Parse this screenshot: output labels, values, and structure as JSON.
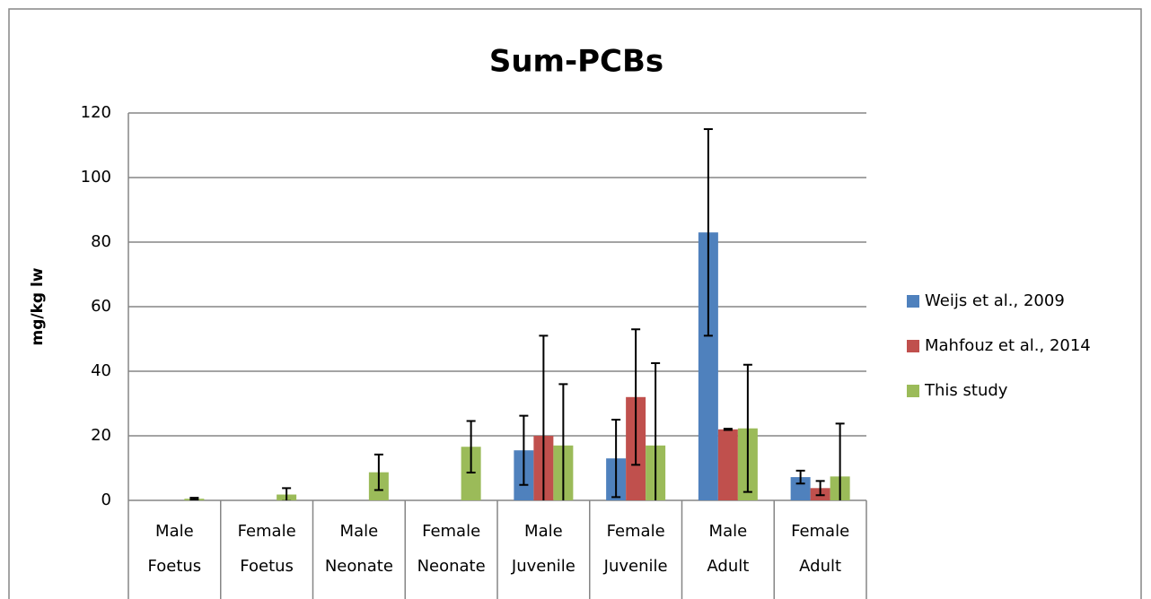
{
  "chart_data": {
    "type": "bar",
    "title": "Sum-PCBs",
    "y_label": "mg/kg lw",
    "categories": [
      [
        "Male",
        "Foetus"
      ],
      [
        "Female",
        "Foetus"
      ],
      [
        "Male",
        "Neonate"
      ],
      [
        "Female",
        "Neonate"
      ],
      [
        "Male",
        "Juvenile"
      ],
      [
        "Female",
        "Juvenile"
      ],
      [
        "Male",
        "Adult"
      ],
      [
        "Female",
        "Adult"
      ]
    ],
    "series": [
      {
        "name": "Weijs et al., 2009",
        "color": "#4f81bd",
        "values": [
          null,
          null,
          null,
          null,
          15.5,
          13,
          83,
          7.2
        ],
        "errors": [
          null,
          null,
          null,
          null,
          10.7,
          12,
          32,
          2
        ]
      },
      {
        "name": "Mahfouz et al., 2014",
        "color": "#c0504d",
        "values": [
          null,
          null,
          null,
          null,
          20,
          32,
          22,
          3.8
        ],
        "errors": [
          null,
          null,
          null,
          null,
          31,
          21,
          0.2,
          2.2
        ]
      },
      {
        "name": "This study",
        "color": "#9bbb59",
        "values": [
          0.5,
          1.8,
          8.7,
          16.6,
          17,
          17,
          22.3,
          7.4
        ],
        "errors": [
          0.3,
          2,
          5.5,
          8,
          19,
          25.5,
          19.7,
          16.4
        ]
      }
    ],
    "ylim": [
      0,
      120
    ],
    "yticks": [
      0,
      20,
      40,
      60,
      80,
      100,
      120
    ],
    "grid": true,
    "legend": "right"
  }
}
